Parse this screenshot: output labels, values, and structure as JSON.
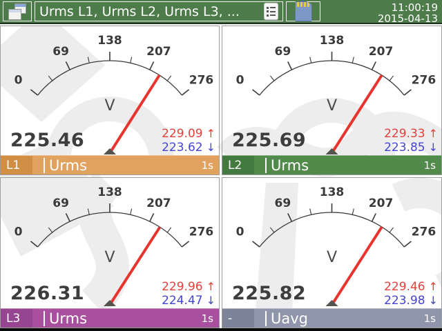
{
  "topbar": {
    "title": "Urms L1, Urms L2, Urms L3, ...",
    "time": "11:00:19",
    "date": "2015-04-13",
    "background_color": "#4d7c4a"
  },
  "symbols": {
    "up": "↑",
    "down": "↓"
  },
  "gauge": {
    "unit": "V",
    "scale_min": 0,
    "scale_max": 276,
    "major_ticks": [
      0,
      69,
      138,
      207,
      276
    ],
    "minor_ticks": [
      34.5,
      103.5,
      172.5,
      241.5
    ],
    "start_angle_deg": 141.2,
    "end_angle_deg": 38.8,
    "arc_color": "#3a3a3a",
    "needle_color": "#e8342e",
    "label_color": "#3a3a3a",
    "unit_color": "#4a4a4a"
  },
  "value_colors": {
    "reading": "#3d3d3d",
    "max": "#e5403b",
    "min": "#4343d6"
  },
  "panels": [
    {
      "channel": "L1",
      "quantity": "Urms",
      "value": "225.46",
      "max": "229.09",
      "min": "223.62",
      "interval": "1s",
      "colors": {
        "bar": "#e2a25f",
        "channel_box": "#d08f44"
      }
    },
    {
      "channel": "L2",
      "quantity": "Urms",
      "value": "225.69",
      "max": "229.33",
      "min": "223.85",
      "interval": "1s",
      "colors": {
        "bar": "#528a4b",
        "channel_box": "#447a40"
      }
    },
    {
      "channel": "L3",
      "quantity": "Urms",
      "value": "226.31",
      "max": "229.96",
      "min": "224.47",
      "interval": "1s",
      "colors": {
        "bar": "#a8509d",
        "channel_box": "#964590"
      }
    },
    {
      "channel": "-",
      "quantity": "Uavg",
      "value": "225.82",
      "max": "229.46",
      "min": "223.98",
      "interval": "1s",
      "colors": {
        "bar": "#8f95aa",
        "channel_box": "#7d8399"
      }
    }
  ]
}
